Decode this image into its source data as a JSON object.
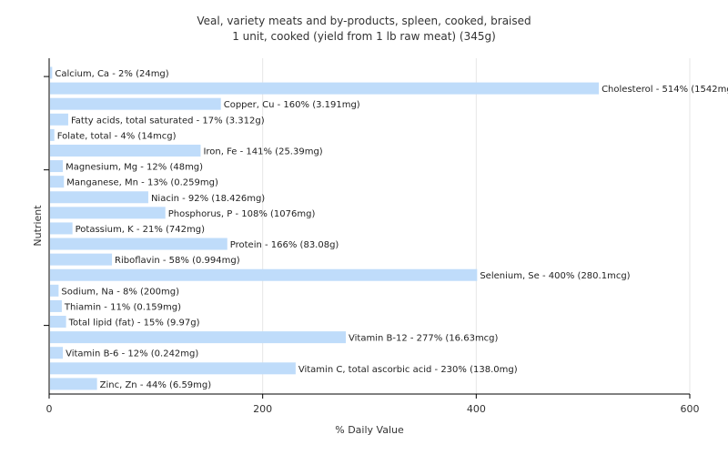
{
  "chart_data": {
    "type": "bar",
    "orientation": "horizontal",
    "title": "Veal, variety meats and by-products, spleen, cooked, braised",
    "subtitle": "1 unit, cooked (yield from 1 lb raw meat) (345g)",
    "xlabel": "% Daily Value",
    "ylabel": "Nutrient",
    "xlim": [
      0,
      600
    ],
    "xticks": [
      "0",
      "200",
      "400",
      "600"
    ],
    "grid": true,
    "bar_color": "#bfdcfa",
    "categories": [
      "Calcium, Ca",
      "Cholesterol",
      "Copper, Cu",
      "Fatty acids, total saturated",
      "Folate, total",
      "Iron, Fe",
      "Magnesium, Mg",
      "Manganese, Mn",
      "Niacin",
      "Phosphorus, P",
      "Potassium, K",
      "Protein",
      "Riboflavin",
      "Selenium, Se",
      "Sodium, Na",
      "Thiamin",
      "Total lipid (fat)",
      "Vitamin B-12",
      "Vitamin B-6",
      "Vitamin C, total ascorbic acid",
      "Zinc, Zn"
    ],
    "values": [
      2,
      514,
      160,
      17,
      4,
      141,
      12,
      13,
      92,
      108,
      21,
      166,
      58,
      400,
      8,
      11,
      15,
      277,
      12,
      230,
      44
    ],
    "labels": [
      "Calcium, Ca - 2% (24mg)",
      "Cholesterol - 514% (1542mg)",
      "Copper, Cu - 160% (3.191mg)",
      "Fatty acids, total saturated - 17% (3.312g)",
      "Folate, total - 4% (14mcg)",
      "Iron, Fe - 141% (25.39mg)",
      "Magnesium, Mg - 12% (48mg)",
      "Manganese, Mn - 13% (0.259mg)",
      "Niacin - 92% (18.426mg)",
      "Phosphorus, P - 108% (1076mg)",
      "Potassium, K - 21% (742mg)",
      "Protein - 166% (83.08g)",
      "Riboflavin - 58% (0.994mg)",
      "Selenium, Se - 400% (280.1mcg)",
      "Sodium, Na - 8% (200mg)",
      "Thiamin - 11% (0.159mg)",
      "Total lipid (fat) - 15% (9.97g)",
      "Vitamin B-12 - 277% (16.63mcg)",
      "Vitamin B-6 - 12% (0.242mg)",
      "Vitamin C, total ascorbic acid - 230% (138.0mg)",
      "Zinc, Zn - 44% (6.59mg)"
    ]
  }
}
